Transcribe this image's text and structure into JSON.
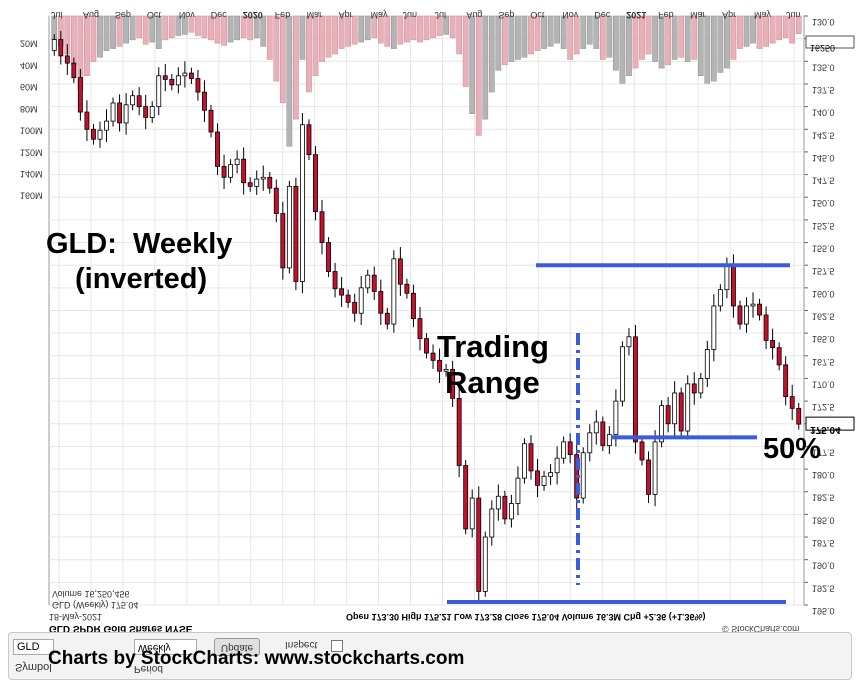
{
  "chart_data": {
    "type": "candlestick",
    "title": "GLD SPDR Gold Shares NYSE",
    "subtitle": "18-May-2021",
    "series_label": "GLD (Weekly) 175.04",
    "volume_label": "Volume 16,250,456",
    "ohlc_summary": "Open 173.30  High 175.21  Low 173.28  Close 175.04  Volume 16.3M  Chg +2.36 (+1.36%)",
    "watermark": "© StockCharts.com",
    "inverted": true,
    "y_axis": {
      "range": [
        130,
        195
      ],
      "ticks": [
        "130.0",
        "132.5",
        "135.0",
        "137.5",
        "140.0",
        "142.5",
        "145.0",
        "147.5",
        "150.0",
        "152.5",
        "155.0",
        "157.5",
        "160.0",
        "162.5",
        "165.0",
        "167.5",
        "170.0",
        "172.5",
        "175.0",
        "177.5",
        "180.0",
        "182.5",
        "185.0",
        "187.5",
        "190.0",
        "192.5",
        "195.0"
      ],
      "last_value_tag": "175.04"
    },
    "volume_axis": {
      "range_millions": [
        0,
        175
      ],
      "ticks": [
        "20M",
        "40M",
        "60M",
        "80M",
        "100M",
        "120M",
        "140M",
        "160M"
      ],
      "top_tag": "16250"
    },
    "x_axis": {
      "labels": [
        "Jul",
        "Aug",
        "Sep",
        "Oct",
        "Nov",
        "Dec",
        "2020",
        "Feb",
        "Mar",
        "Apr",
        "May",
        "Jun",
        "Jul",
        "Aug",
        "Sep",
        "Oct",
        "Nov",
        "Dec",
        "2021",
        "Feb",
        "Mar",
        "Apr",
        "May",
        "Jun"
      ],
      "bold_labels": [
        "2020",
        "2021"
      ]
    },
    "candles": [
      {
        "o": 133.8,
        "c": 132.6,
        "v": 22
      },
      {
        "o": 132.6,
        "c": 134.4,
        "v": 28
      },
      {
        "o": 134.4,
        "c": 135.2,
        "v": 35
      },
      {
        "o": 135.2,
        "c": 136.8,
        "v": 45
      },
      {
        "o": 136.8,
        "c": 140.6,
        "v": 68
      },
      {
        "o": 140.6,
        "c": 142.5,
        "v": 55
      },
      {
        "o": 142.5,
        "c": 143.6,
        "v": 42
      },
      {
        "o": 143.6,
        "c": 142.6,
        "v": 38
      },
      {
        "o": 142.6,
        "c": 141.6,
        "v": 32
      },
      {
        "o": 141.6,
        "c": 139.6,
        "v": 30
      },
      {
        "o": 139.6,
        "c": 141.8,
        "v": 28
      },
      {
        "o": 141.8,
        "c": 139.8,
        "v": 25
      },
      {
        "o": 139.8,
        "c": 138.8,
        "v": 22
      },
      {
        "o": 138.8,
        "c": 140.0,
        "v": 20
      },
      {
        "o": 140.0,
        "c": 141.2,
        "v": 26
      },
      {
        "o": 141.2,
        "c": 140.0,
        "v": 24
      },
      {
        "o": 140.0,
        "c": 136.6,
        "v": 30
      },
      {
        "o": 136.6,
        "c": 137.0,
        "v": 22
      },
      {
        "o": 137.0,
        "c": 137.6,
        "v": 20
      },
      {
        "o": 137.6,
        "c": 136.6,
        "v": 18
      },
      {
        "o": 136.6,
        "c": 136.3,
        "v": 17
      },
      {
        "o": 136.3,
        "c": 136.9,
        "v": 15
      },
      {
        "o": 136.9,
        "c": 138.4,
        "v": 18
      },
      {
        "o": 138.4,
        "c": 140.4,
        "v": 20
      },
      {
        "o": 140.4,
        "c": 142.8,
        "v": 22
      },
      {
        "o": 142.8,
        "c": 146.6,
        "v": 25
      },
      {
        "o": 146.6,
        "c": 147.8,
        "v": 27
      },
      {
        "o": 147.8,
        "c": 146.4,
        "v": 24
      },
      {
        "o": 146.4,
        "c": 145.8,
        "v": 22
      },
      {
        "o": 145.8,
        "c": 148.4,
        "v": 20
      },
      {
        "o": 148.4,
        "c": 148.8,
        "v": 22
      },
      {
        "o": 148.8,
        "c": 148.0,
        "v": 20
      },
      {
        "o": 148.0,
        "c": 147.8,
        "v": 28
      },
      {
        "o": 147.8,
        "c": 149.0,
        "v": 40
      },
      {
        "o": 149.0,
        "c": 151.8,
        "v": 60
      },
      {
        "o": 151.8,
        "c": 157.8,
        "v": 80
      },
      {
        "o": 157.8,
        "c": 148.8,
        "v": 120
      },
      {
        "o": 148.8,
        "c": 159.3,
        "v": 95
      },
      {
        "o": 159.3,
        "c": 142.0,
        "v": 40
      },
      {
        "o": 142.0,
        "c": 145.3,
        "v": 70
      },
      {
        "o": 145.3,
        "c": 151.6,
        "v": 55
      },
      {
        "o": 151.6,
        "c": 155.0,
        "v": 42
      },
      {
        "o": 155.0,
        "c": 158.2,
        "v": 38
      },
      {
        "o": 158.2,
        "c": 160.1,
        "v": 35
      },
      {
        "o": 160.1,
        "c": 160.8,
        "v": 30
      },
      {
        "o": 160.8,
        "c": 161.6,
        "v": 28
      },
      {
        "o": 161.6,
        "c": 162.8,
        "v": 26
      },
      {
        "o": 162.8,
        "c": 160.0,
        "v": 24
      },
      {
        "o": 160.0,
        "c": 158.6,
        "v": 22
      },
      {
        "o": 158.6,
        "c": 160.4,
        "v": 20
      },
      {
        "o": 160.4,
        "c": 162.8,
        "v": 25
      },
      {
        "o": 162.8,
        "c": 164.0,
        "v": 28
      },
      {
        "o": 164.0,
        "c": 156.8,
        "v": 30
      },
      {
        "o": 156.8,
        "c": 159.6,
        "v": 26
      },
      {
        "o": 159.6,
        "c": 160.6,
        "v": 24
      },
      {
        "o": 160.6,
        "c": 163.4,
        "v": 22
      },
      {
        "o": 163.4,
        "c": 165.6,
        "v": 24
      },
      {
        "o": 165.6,
        "c": 167.2,
        "v": 22
      },
      {
        "o": 167.2,
        "c": 168.0,
        "v": 20
      },
      {
        "o": 168.0,
        "c": 169.2,
        "v": 18
      },
      {
        "o": 169.2,
        "c": 169.0,
        "v": 17
      },
      {
        "o": 169.0,
        "c": 172.2,
        "v": 20
      },
      {
        "o": 172.2,
        "c": 179.6,
        "v": 35
      },
      {
        "o": 179.6,
        "c": 186.6,
        "v": 65
      },
      {
        "o": 186.6,
        "c": 183.2,
        "v": 90
      },
      {
        "o": 183.2,
        "c": 193.5,
        "v": 110
      },
      {
        "o": 193.5,
        "c": 187.5,
        "v": 95
      },
      {
        "o": 187.5,
        "c": 184.4,
        "v": 70
      },
      {
        "o": 184.4,
        "c": 183.0,
        "v": 50
      },
      {
        "o": 183.0,
        "c": 185.5,
        "v": 45
      },
      {
        "o": 185.5,
        "c": 183.8,
        "v": 42
      },
      {
        "o": 183.8,
        "c": 181.0,
        "v": 40
      },
      {
        "o": 181.0,
        "c": 177.2,
        "v": 38
      },
      {
        "o": 177.2,
        "c": 180.2,
        "v": 35
      },
      {
        "o": 180.2,
        "c": 181.8,
        "v": 32
      },
      {
        "o": 181.8,
        "c": 180.8,
        "v": 30
      },
      {
        "o": 180.8,
        "c": 180.4,
        "v": 28
      },
      {
        "o": 180.4,
        "c": 178.8,
        "v": 25
      },
      {
        "o": 178.8,
        "c": 177.0,
        "v": 30
      },
      {
        "o": 177.0,
        "c": 178.4,
        "v": 40
      },
      {
        "o": 178.4,
        "c": 183.2,
        "v": 35
      },
      {
        "o": 183.2,
        "c": 178.2,
        "v": 30
      },
      {
        "o": 178.2,
        "c": 176.0,
        "v": 26
      },
      {
        "o": 176.0,
        "c": 174.8,
        "v": 30
      },
      {
        "o": 174.8,
        "c": 177.4,
        "v": 40
      },
      {
        "o": 177.4,
        "c": 176.2,
        "v": 38
      },
      {
        "o": 176.2,
        "c": 172.5,
        "v": 50
      },
      {
        "o": 172.5,
        "c": 166.5,
        "v": 62
      },
      {
        "o": 166.5,
        "c": 165.4,
        "v": 55
      },
      {
        "o": 165.4,
        "c": 177.0,
        "v": 48
      },
      {
        "o": 177.0,
        "c": 179.0,
        "v": 40
      },
      {
        "o": 179.0,
        "c": 182.8,
        "v": 35
      },
      {
        "o": 182.8,
        "c": 177.0,
        "v": 42
      },
      {
        "o": 177.0,
        "c": 173.0,
        "v": 48
      },
      {
        "o": 173.0,
        "c": 175.0,
        "v": 45
      },
      {
        "o": 175.0,
        "c": 171.6,
        "v": 40
      },
      {
        "o": 171.6,
        "c": 175.8,
        "v": 38
      },
      {
        "o": 175.8,
        "c": 170.6,
        "v": 42
      },
      {
        "o": 170.6,
        "c": 171.6,
        "v": 40
      },
      {
        "o": 171.6,
        "c": 170.0,
        "v": 55
      },
      {
        "o": 170.0,
        "c": 166.8,
        "v": 62
      },
      {
        "o": 166.8,
        "c": 162.0,
        "v": 60
      },
      {
        "o": 162.0,
        "c": 160.2,
        "v": 52
      },
      {
        "o": 160.2,
        "c": 157.6,
        "v": 48
      },
      {
        "o": 157.6,
        "c": 162.0,
        "v": 40
      },
      {
        "o": 162.0,
        "c": 164.0,
        "v": 30
      },
      {
        "o": 164.0,
        "c": 162.0,
        "v": 28
      },
      {
        "o": 162.0,
        "c": 161.8,
        "v": 25
      },
      {
        "o": 161.8,
        "c": 163.0,
        "v": 30
      },
      {
        "o": 163.0,
        "c": 165.8,
        "v": 28
      },
      {
        "o": 165.8,
        "c": 166.6,
        "v": 25
      },
      {
        "o": 166.6,
        "c": 168.5,
        "v": 22
      },
      {
        "o": 168.5,
        "c": 172.0,
        "v": 20
      },
      {
        "o": 172.0,
        "c": 173.3,
        "v": 25
      },
      {
        "o": 173.3,
        "c": 175.04,
        "v": 16.3
      }
    ],
    "annotations": {
      "title_note": "GLD:  Weekly",
      "inverted_note": "(inverted)",
      "range_note_1": "Trading",
      "range_note_2": "Range",
      "pct_note": "50%",
      "credit": "Charts by StockCharts:  www.stockcharts.com"
    },
    "reference_lines": {
      "range_top": 157.5,
      "range_mid": 176.5,
      "range_bottom": 195.0
    }
  },
  "controls": {
    "symbol_value": "GLD",
    "symbol_label": "Symbol",
    "period_value": "Weekly",
    "period_label": "Period",
    "update_label": "Update",
    "inspect_label": "Inspect"
  },
  "colors": {
    "up_fill": "#ffffff",
    "down_fill": "#c8102e",
    "volume_gray": "#b4b4b4",
    "volume_pink": "#e8b0b8",
    "annotation_blue": "#3a5bdc",
    "grid": "#e6e6e6"
  }
}
